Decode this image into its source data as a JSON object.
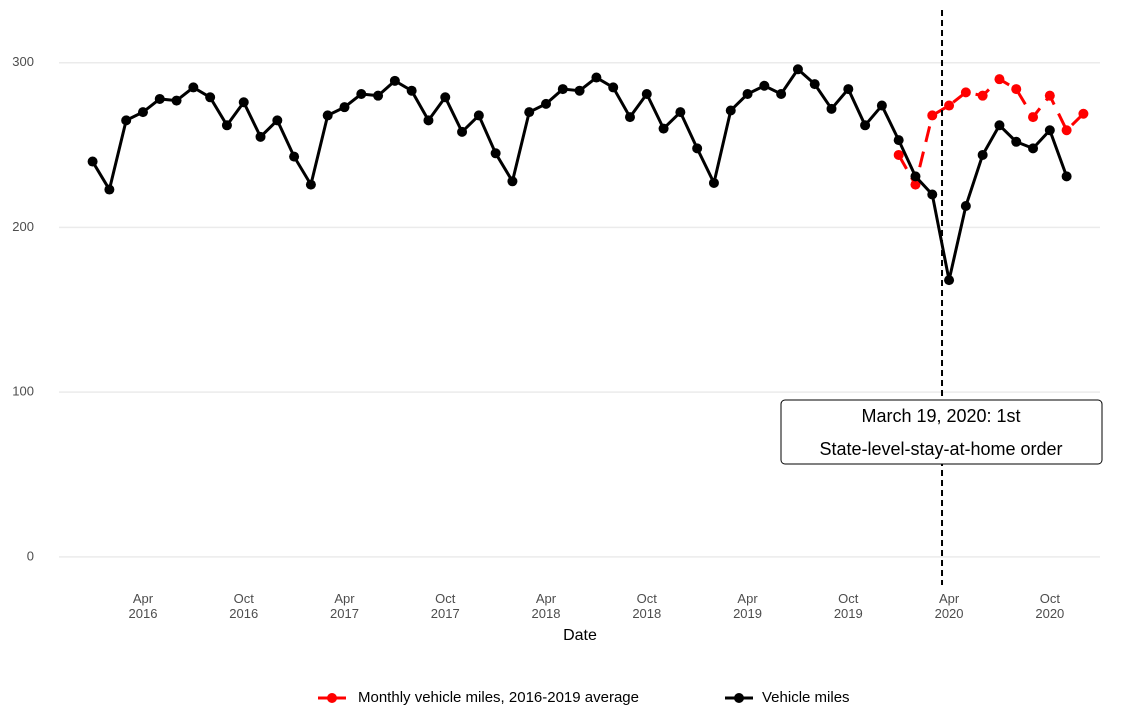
{
  "chart_data": {
    "type": "line",
    "x_label": "Date",
    "x": [
      "2016-01",
      "2016-02",
      "2016-03",
      "2016-04",
      "2016-05",
      "2016-06",
      "2016-07",
      "2016-08",
      "2016-09",
      "2016-10",
      "2016-11",
      "2016-12",
      "2017-01",
      "2017-02",
      "2017-03",
      "2017-04",
      "2017-05",
      "2017-06",
      "2017-07",
      "2017-08",
      "2017-09",
      "2017-10",
      "2017-11",
      "2017-12",
      "2018-01",
      "2018-02",
      "2018-03",
      "2018-04",
      "2018-05",
      "2018-06",
      "2018-07",
      "2018-08",
      "2018-09",
      "2018-10",
      "2018-11",
      "2018-12",
      "2019-01",
      "2019-02",
      "2019-03",
      "2019-04",
      "2019-05",
      "2019-06",
      "2019-07",
      "2019-08",
      "2019-09",
      "2019-10",
      "2019-11",
      "2019-12",
      "2020-01",
      "2020-02",
      "2020-03",
      "2020-04",
      "2020-05",
      "2020-06",
      "2020-07",
      "2020-08",
      "2020-09",
      "2020-10",
      "2020-11",
      "2020-12"
    ],
    "series": [
      {
        "name": "Monthly vehicle miles, 2016-2019 average",
        "color": "#ff0000",
        "dashed": true,
        "values": [
          null,
          null,
          null,
          null,
          null,
          null,
          null,
          null,
          null,
          null,
          null,
          null,
          null,
          null,
          null,
          null,
          null,
          null,
          null,
          null,
          null,
          null,
          null,
          null,
          null,
          null,
          null,
          null,
          null,
          null,
          null,
          null,
          null,
          null,
          null,
          null,
          null,
          null,
          null,
          null,
          null,
          null,
          null,
          null,
          null,
          null,
          null,
          null,
          244,
          226,
          268,
          274,
          282,
          280,
          290,
          284,
          267,
          280,
          259,
          269
        ]
      },
      {
        "name": "Vehicle miles",
        "color": "#000000",
        "dashed": false,
        "values": [
          240,
          223,
          265,
          270,
          278,
          277,
          285,
          279,
          262,
          276,
          255,
          265,
          243,
          226,
          268,
          273,
          281,
          280,
          289,
          283,
          265,
          279,
          258,
          268,
          245,
          228,
          270,
          275,
          284,
          283,
          291,
          285,
          267,
          281,
          260,
          270,
          248,
          227,
          271,
          281,
          286,
          281,
          296,
          287,
          272,
          284,
          262,
          274,
          253,
          231,
          220,
          168,
          213,
          244,
          262,
          252,
          248,
          259,
          231,
          null
        ]
      }
    ],
    "xlim": [
      "2015-11",
      "2021-02"
    ],
    "xticks": [
      {
        "value": "2016-04",
        "label": "Apr 2016"
      },
      {
        "value": "2016-10",
        "label": "Oct 2016"
      },
      {
        "value": "2017-04",
        "label": "Apr 2017"
      },
      {
        "value": "2017-10",
        "label": "Oct 2017"
      },
      {
        "value": "2018-04",
        "label": "Apr 2018"
      },
      {
        "value": "2018-10",
        "label": "Oct 2018"
      },
      {
        "value": "2019-04",
        "label": "Apr 2019"
      },
      {
        "value": "2019-10",
        "label": "Oct 2019"
      },
      {
        "value": "2020-04",
        "label": "Apr 2020"
      },
      {
        "value": "2020-10",
        "label": "Oct 2020"
      }
    ],
    "ylim": [
      -11,
      332
    ],
    "yticks": [
      0,
      100,
      200,
      300
    ],
    "grid": true,
    "legend": "bottom",
    "vline": {
      "x": "2020-03-19",
      "annotation": [
        "March 19, 2020: 1st",
        "State-level-stay-at-home order"
      ]
    }
  }
}
